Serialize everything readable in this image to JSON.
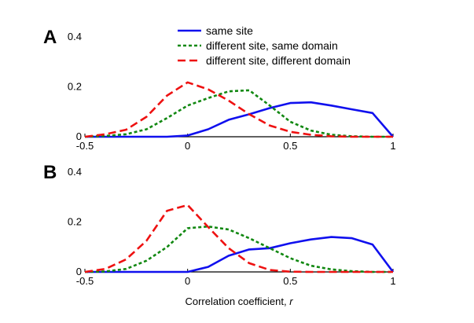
{
  "chart_data": [
    {
      "type": "line",
      "panel_label": "A",
      "x": [
        -0.5,
        -0.4,
        -0.3,
        -0.2,
        -0.1,
        0.0,
        0.1,
        0.2,
        0.3,
        0.4,
        0.5,
        0.6,
        0.7,
        0.8,
        0.9,
        1.0
      ],
      "series": [
        {
          "name": "same  site",
          "color": "#1010ee",
          "dash": "solid",
          "values": [
            0.0,
            0.0,
            0.0,
            0.0,
            0.0,
            0.005,
            0.03,
            0.068,
            0.09,
            0.115,
            0.135,
            0.138,
            0.125,
            0.11,
            0.095,
            0.0
          ]
        },
        {
          "name": "different  site,  same  domain",
          "color": "#118811",
          "dash": "dotted",
          "values": [
            0.0,
            0.003,
            0.01,
            0.03,
            0.075,
            0.125,
            0.155,
            0.182,
            0.186,
            0.125,
            0.06,
            0.025,
            0.008,
            0.002,
            0.0,
            0.0
          ]
        },
        {
          "name": "different  site,  different  domain",
          "color": "#ee1111",
          "dash": "dashed",
          "values": [
            0.0,
            0.01,
            0.028,
            0.08,
            0.165,
            0.218,
            0.19,
            0.145,
            0.09,
            0.045,
            0.02,
            0.008,
            0.002,
            0.0,
            0.0,
            0.0
          ]
        }
      ],
      "xlim": [
        -0.5,
        1.0
      ],
      "ylim": [
        0,
        0.4
      ],
      "xticks": [
        "-0.5",
        "0",
        "0.5",
        "1"
      ],
      "yticks": [
        "0",
        "0.2",
        "0.4"
      ],
      "legend": "top-center",
      "grid": false
    },
    {
      "type": "line",
      "panel_label": "B",
      "x": [
        -0.5,
        -0.4,
        -0.3,
        -0.2,
        -0.1,
        0.0,
        0.1,
        0.2,
        0.3,
        0.4,
        0.5,
        0.6,
        0.7,
        0.8,
        0.9,
        1.0
      ],
      "series": [
        {
          "name": "same  site",
          "color": "#1010ee",
          "dash": "solid",
          "values": [
            0.0,
            0.0,
            0.0,
            0.0,
            0.0,
            0.0,
            0.02,
            0.065,
            0.09,
            0.095,
            0.115,
            0.13,
            0.14,
            0.135,
            0.11,
            0.0
          ]
        },
        {
          "name": "different  site,  same  domain",
          "color": "#118811",
          "dash": "dotted",
          "values": [
            0.0,
            0.002,
            0.012,
            0.045,
            0.1,
            0.175,
            0.182,
            0.17,
            0.135,
            0.095,
            0.055,
            0.025,
            0.01,
            0.003,
            0.0,
            0.0
          ]
        },
        {
          "name": "different  site,  different  domain",
          "color": "#ee1111",
          "dash": "dashed",
          "values": [
            0.0,
            0.012,
            0.05,
            0.125,
            0.245,
            0.268,
            0.18,
            0.095,
            0.035,
            0.008,
            0.001,
            0.0,
            0.0,
            0.0,
            0.0,
            0.0
          ]
        }
      ],
      "xlim": [
        -0.5,
        1.0
      ],
      "ylim": [
        0,
        0.4
      ],
      "xticks": [
        "-0.5",
        "0",
        "0.5",
        "1"
      ],
      "yticks": [
        "0",
        "0.2",
        "0.4"
      ],
      "xlabel": "Correlation  coefficient,",
      "xlabel_var": "r",
      "grid": false
    }
  ]
}
